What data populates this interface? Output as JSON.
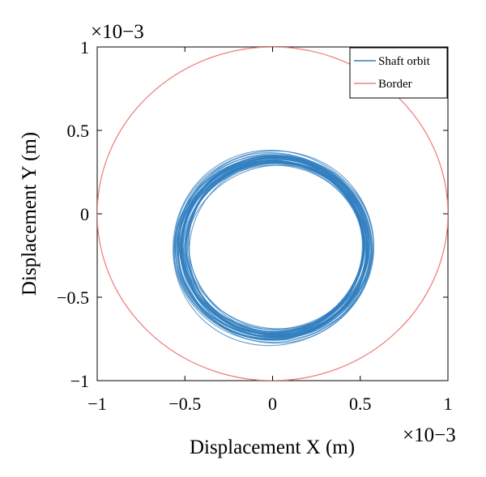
{
  "chart_data": {
    "type": "line",
    "title": "",
    "xlabel": "Displacement X (m)",
    "ylabel": "Displacement Y (m)",
    "xlim": [
      -1,
      1
    ],
    "ylim": [
      -1,
      1
    ],
    "x_multiplier": "×10−3",
    "y_multiplier": "×10−3",
    "xticks": [
      "−1",
      "−0.5",
      "0",
      "0.5",
      "1"
    ],
    "yticks": [
      "−1",
      "−0.5",
      "0",
      "0.5",
      "1"
    ],
    "grid": false,
    "legend": {
      "position": "top-right",
      "entries": [
        "Shaft orbit",
        "Border"
      ]
    },
    "series": [
      {
        "name": "Shaft orbit",
        "color": "#2f7ebf",
        "shape": "noisy-circle",
        "center": [
          0.01,
          -0.2
        ],
        "radius": 0.54,
        "band_width": 0.04
      },
      {
        "name": "Border",
        "color": "#f08080",
        "shape": "circle",
        "center": [
          0,
          0
        ],
        "radius": 1.0
      }
    ]
  }
}
